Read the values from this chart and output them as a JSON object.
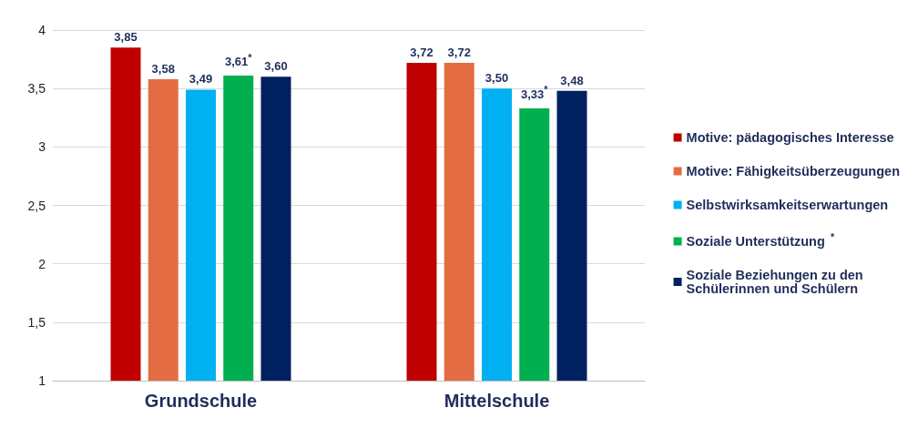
{
  "chart_data": {
    "type": "bar",
    "categories": [
      "Grundschule",
      "Mittelschule"
    ],
    "series": [
      {
        "name": "Motive: pädagogisches Interesse",
        "color": "#c00000",
        "values": [
          3.85,
          3.72
        ],
        "value_labels": [
          "3,85",
          "3,72"
        ]
      },
      {
        "name": "Motive: Fähigkeitsüberzeugungen",
        "color": "#e46c42",
        "values": [
          3.58,
          3.72
        ],
        "value_labels": [
          "3,58",
          "3,72"
        ]
      },
      {
        "name": "Selbstwirksamkeitserwartungen",
        "color": "#00b0f0",
        "values": [
          3.49,
          3.5
        ],
        "value_labels": [
          "3,49",
          "3,50"
        ]
      },
      {
        "name": "Soziale Unterstützung$^{*}$",
        "color": "#00b050",
        "values": [
          3.61,
          3.33
        ],
        "value_labels": [
          "3,61$^{*}$",
          "3,33$^{*}$"
        ]
      },
      {
        "name": "Soziale Beziehungen zu den Schülerinnen und Schülern",
        "color": "#002060",
        "values": [
          3.6,
          3.48
        ],
        "value_labels": [
          "3,60",
          "3,48"
        ]
      }
    ],
    "ylim": [
      1,
      4
    ],
    "yticks": [
      1,
      {
        "value": 1.5,
        "label": "1,5"
      },
      2,
      {
        "value": 2.5,
        "label": "2,5"
      },
      3,
      {
        "value": 3.5,
        "label": "3,5"
      },
      4
    ],
    "grid": "y",
    "legend": "right"
  }
}
